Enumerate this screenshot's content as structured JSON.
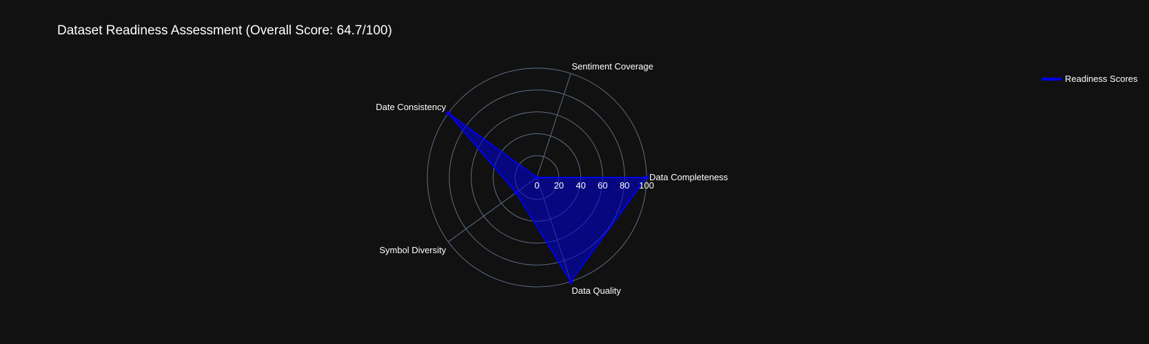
{
  "chart_data": {
    "type": "radar",
    "title": "Dataset Readiness Assessment (Overall Score: 64.7/100)",
    "categories": [
      "Data Completeness",
      "Sentiment Coverage",
      "Date Consistency",
      "Symbol Diversity",
      "Data Quality"
    ],
    "series": [
      {
        "name": "Readiness Scores",
        "values": [
          100,
          0,
          100,
          23.5,
          100
        ],
        "color": "#0000ee",
        "fill": "rgba(0, 0, 220, 0.55)"
      }
    ],
    "radial_ticks": [
      "0",
      "20",
      "40",
      "60",
      "80",
      "100"
    ],
    "range": [
      0,
      100
    ],
    "grid": true,
    "legend_position": "top-right",
    "colors": {
      "background": "#111111",
      "grid": "#5f6f87",
      "text": "#ffffff"
    }
  }
}
